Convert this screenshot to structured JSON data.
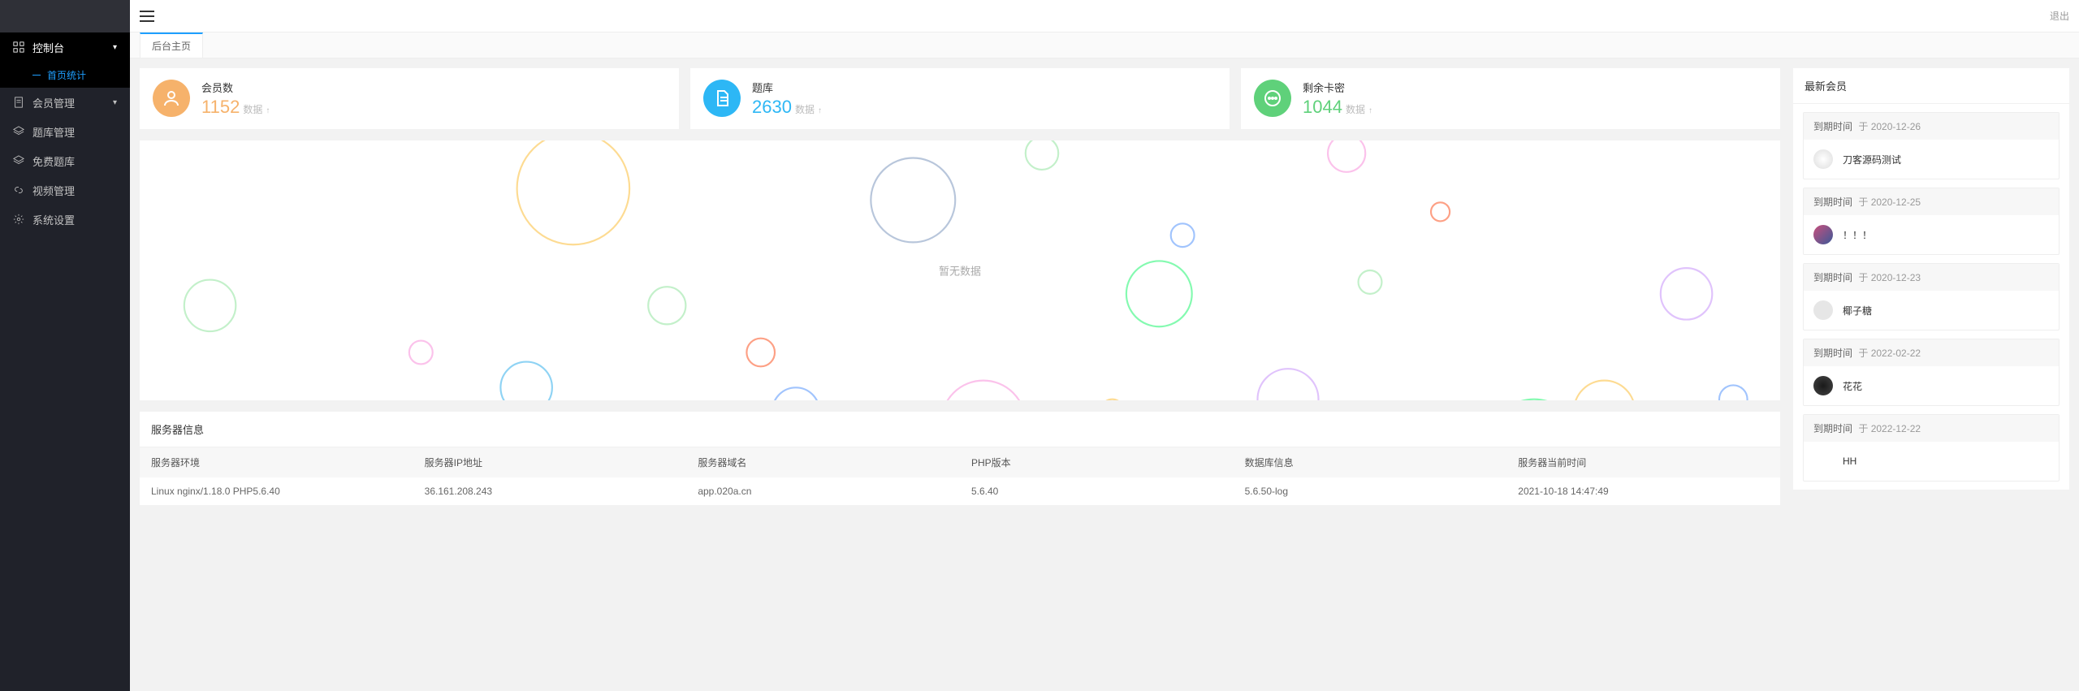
{
  "topbar": {
    "logout": "退出"
  },
  "tab": "后台主页",
  "sidebar": {
    "items": [
      {
        "label": "控制台",
        "expandable": true,
        "active": true
      },
      {
        "label": "会员管理",
        "expandable": true
      },
      {
        "label": "题库管理"
      },
      {
        "label": "免费题库"
      },
      {
        "label": "视频管理"
      },
      {
        "label": "系统设置"
      }
    ],
    "sub": "首页统计"
  },
  "stats": [
    {
      "title": "会员数",
      "value": "1152",
      "sub": "数据",
      "color": "orange"
    },
    {
      "title": "题库",
      "value": "2630",
      "sub": "数据",
      "color": "blue"
    },
    {
      "title": "剩余卡密",
      "value": "1044",
      "sub": "数据",
      "color": "green"
    }
  ],
  "chart": {
    "empty_text": "暂无数据",
    "bubble_colors": [
      "#fbc2eb",
      "#a1c4fd",
      "#c3f0ca",
      "#fddb92",
      "#d4fc79",
      "#84fab0",
      "#fccb90",
      "#b8c6db",
      "#fda085",
      "#f6d365",
      "#e0c3fc",
      "#8fd3f4"
    ]
  },
  "server": {
    "title": "服务器信息",
    "columns": [
      "服务器环境",
      "服务器IP地址",
      "服务器域名",
      "PHP版本",
      "数据库信息",
      "服务器当前时间"
    ],
    "row": [
      "Linux nginx/1.18.0 PHP5.6.40",
      "36.161.208.243",
      "app.020a.cn",
      "5.6.40",
      "5.6.50-log",
      "2021-10-18 14:47:49"
    ]
  },
  "side": {
    "title": "最新会员",
    "expire_label": "到期时间",
    "sep": "于",
    "members": [
      {
        "date": "2020-12-26",
        "name": "刀客源码测试",
        "avatar": "c1"
      },
      {
        "date": "2020-12-25",
        "name": "！！！",
        "avatar": "c2"
      },
      {
        "date": "2020-12-23",
        "name": "椰子糖",
        "avatar": "c3"
      },
      {
        "date": "2022-02-22",
        "name": "花花",
        "avatar": "c4"
      },
      {
        "date": "2022-12-22",
        "name": "HH",
        "avatar": "c5"
      }
    ]
  }
}
